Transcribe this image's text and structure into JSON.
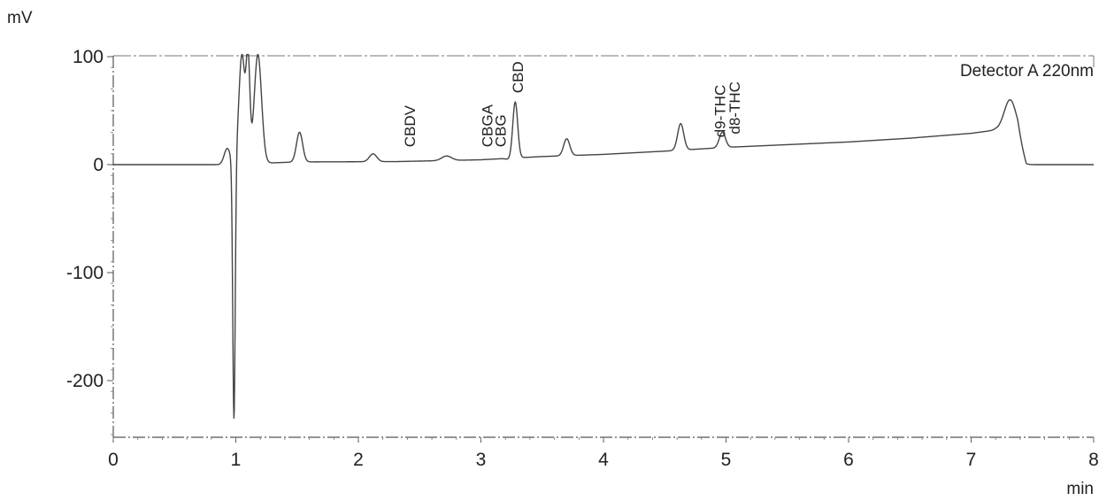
{
  "chart_data": {
    "type": "line",
    "title": "",
    "xlabel": "min",
    "ylabel": "mV",
    "xlim": [
      0,
      8
    ],
    "ylim": [
      -255,
      102
    ],
    "x_ticks": [
      0,
      1,
      2,
      3,
      4,
      5,
      6,
      7,
      8
    ],
    "y_ticks": [
      100,
      0,
      -100,
      -200
    ],
    "grid": false,
    "legend": "none",
    "annotation": "Detector A 220nm",
    "line_color": "#444444",
    "baseline": [
      [
        0.0,
        0.0
      ],
      [
        0.9,
        0.0
      ],
      [
        1.5,
        2.5
      ],
      [
        2.3,
        2.8
      ],
      [
        3.0,
        4.5
      ],
      [
        3.5,
        7.5
      ],
      [
        4.0,
        9.5
      ],
      [
        4.5,
        12.5
      ],
      [
        5.0,
        16.0
      ],
      [
        5.5,
        18.5
      ],
      [
        6.0,
        21.0
      ],
      [
        6.5,
        24.5
      ],
      [
        7.0,
        29.0
      ],
      [
        7.2,
        32.0
      ],
      [
        7.38,
        26.0
      ],
      [
        7.45,
        0.0
      ],
      [
        8.0,
        0.0
      ]
    ],
    "peaks": [
      {
        "x": 0.93,
        "y": 15,
        "width": 0.025
      },
      {
        "x": 0.985,
        "y": -240,
        "width": 0.01
      },
      {
        "x": 1.05,
        "y": 102,
        "width": 0.025
      },
      {
        "x": 1.1,
        "y": 92,
        "width": 0.015
      },
      {
        "x": 1.18,
        "y": 102,
        "width": 0.03
      },
      {
        "x": 1.52,
        "y": 30,
        "width": 0.025
      },
      {
        "x": 2.12,
        "y": 10,
        "width": 0.03
      },
      {
        "x": 2.72,
        "y": 8,
        "width": 0.04
      },
      {
        "x": 3.22,
        "y": 5,
        "width": 0.02
      },
      {
        "x": 3.28,
        "y": 58,
        "width": 0.02
      },
      {
        "x": 3.7,
        "y": 24,
        "width": 0.025
      },
      {
        "x": 4.63,
        "y": 38,
        "width": 0.025
      },
      {
        "x": 4.97,
        "y": 30,
        "width": 0.025
      },
      {
        "x": 7.32,
        "y": 60,
        "width": 0.05
      }
    ],
    "peak_labels": [
      {
        "name": "CBDV",
        "x": 2.42,
        "y": 8
      },
      {
        "name": "CBGA",
        "x": 3.05,
        "y": 8
      },
      {
        "name": "CBG",
        "x": 3.16,
        "y": 8
      },
      {
        "name": "CBD",
        "x": 3.3,
        "y": 58
      },
      {
        "name": "d9-THC",
        "x": 4.95,
        "y": 17
      },
      {
        "name": "d8-THC",
        "x": 5.07,
        "y": 20
      }
    ]
  }
}
